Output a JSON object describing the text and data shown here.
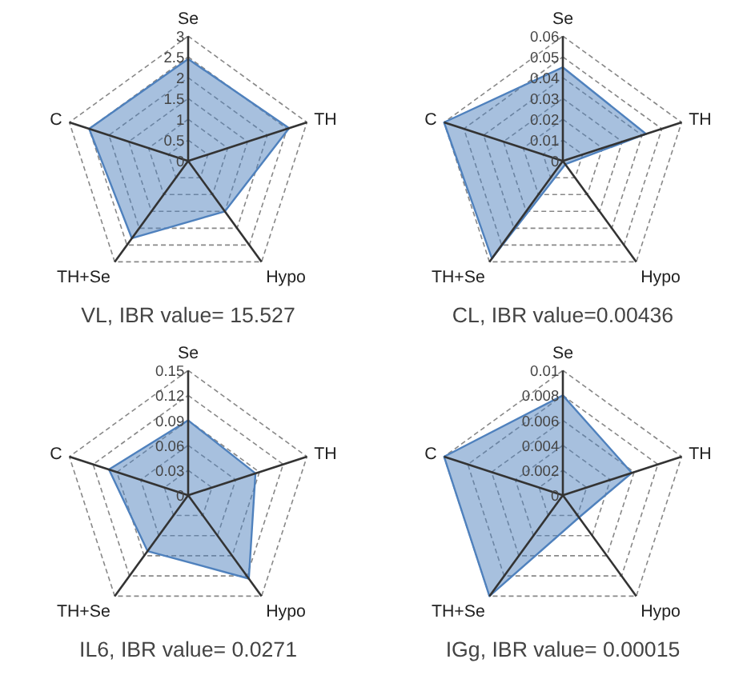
{
  "chart_data": [
    {
      "type": "radar",
      "title": "VL, IBR value= 15.527",
      "categories": [
        "Se",
        "TH",
        "Hypo",
        "TH+Se",
        "C"
      ],
      "ylim": [
        0,
        3
      ],
      "yticks": [
        0,
        0.5,
        1,
        1.5,
        2,
        2.5,
        3
      ],
      "grid": true,
      "series": [
        {
          "color": "#4f81bd",
          "values": [
            2.45,
            2.55,
            1.5,
            2.3,
            2.5
          ]
        }
      ]
    },
    {
      "type": "radar",
      "title": "CL, IBR value=0.00436",
      "categories": [
        "Se",
        "TH",
        "Hypo",
        "TH+Se",
        "C"
      ],
      "ylim": [
        0,
        0.06
      ],
      "yticks": [
        0,
        0.01,
        0.02,
        0.03,
        0.04,
        0.05,
        0.06
      ],
      "grid": true,
      "series": [
        {
          "color": "#4f81bd",
          "values": [
            0.045,
            0.042,
            0.002,
            0.058,
            0.06
          ]
        }
      ]
    },
    {
      "type": "radar",
      "title": "IL6, IBR value= 0.0271",
      "categories": [
        "Se",
        "TH",
        "Hypo",
        "TH+Se",
        "C"
      ],
      "ylim": [
        0,
        0.15
      ],
      "yticks": [
        0,
        0.03,
        0.06,
        0.09,
        0.12,
        0.15
      ],
      "grid": true,
      "series": [
        {
          "color": "#4f81bd",
          "values": [
            0.09,
            0.085,
            0.124,
            0.083,
            0.1
          ]
        }
      ]
    },
    {
      "type": "radar",
      "title": "IGg, IBR value= 0.00015",
      "categories": [
        "Se",
        "TH",
        "Hypo",
        "TH+Se",
        "C"
      ],
      "ylim": [
        0,
        0.01
      ],
      "yticks": [
        0,
        0.002,
        0.004,
        0.006,
        0.008,
        0.01
      ],
      "grid": true,
      "series": [
        {
          "color": "#4f81bd",
          "values": [
            0.008,
            0.0058,
            0.0022,
            0.01,
            0.01
          ]
        }
      ]
    }
  ]
}
